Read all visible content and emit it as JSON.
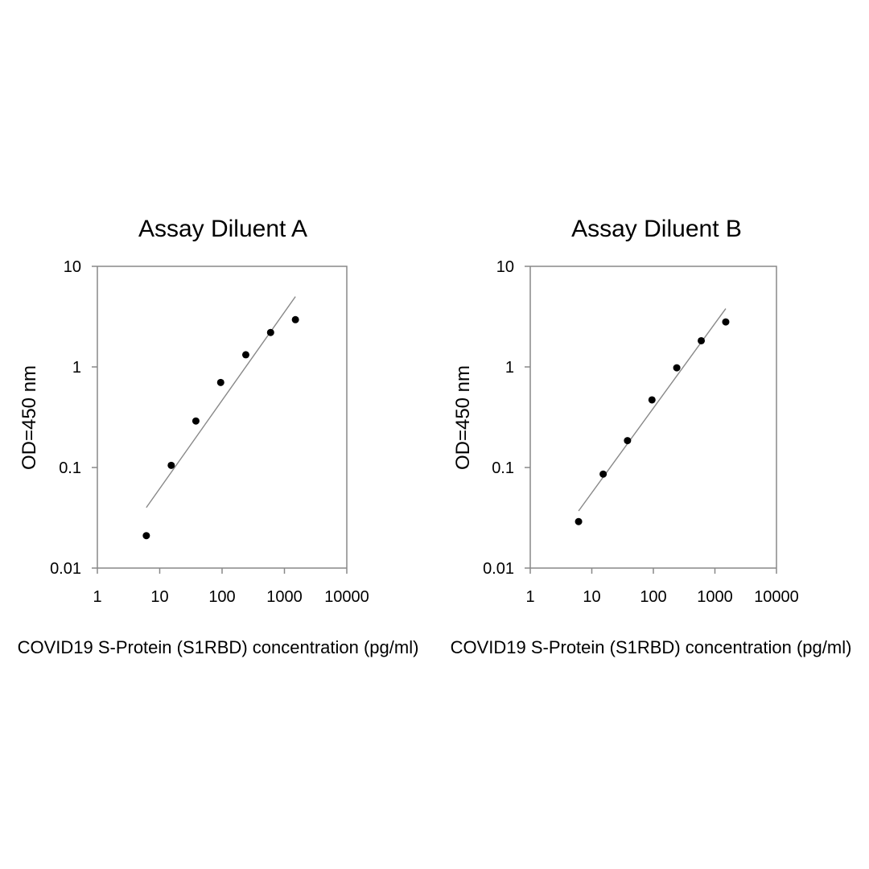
{
  "chart_data": [
    {
      "type": "scatter",
      "title": "Assay Diluent A",
      "xlabel": "COVID19 S-Protein (S1RBD) concentration (pg/ml)",
      "ylabel": "OD=450 nm",
      "xscale": "log",
      "yscale": "log",
      "xlim": [
        1,
        10000
      ],
      "ylim": [
        0.01,
        10
      ],
      "x_ticks": [
        "1",
        "10",
        "100",
        "1000",
        "10000"
      ],
      "y_ticks": [
        "10",
        "1",
        "0.1",
        "0.01"
      ],
      "grid": false,
      "points": [
        {
          "x": 6.1,
          "y": 0.021
        },
        {
          "x": 15.3,
          "y": 0.105
        },
        {
          "x": 38,
          "y": 0.29
        },
        {
          "x": 95,
          "y": 0.7
        },
        {
          "x": 240,
          "y": 1.32
        },
        {
          "x": 600,
          "y": 2.2
        },
        {
          "x": 1500,
          "y": 2.95
        }
      ],
      "trendline": [
        {
          "x": 6.1,
          "y": 0.04
        },
        {
          "x": 1500,
          "y": 5.0
        }
      ]
    },
    {
      "type": "scatter",
      "title": "Assay Diluent B",
      "xlabel": "COVID19 S-Protein (S1RBD) concentration (pg/ml)",
      "ylabel": "OD=450 nm",
      "xscale": "log",
      "yscale": "log",
      "xlim": [
        1,
        10000
      ],
      "ylim": [
        0.01,
        10
      ],
      "x_ticks": [
        "1",
        "10",
        "100",
        "1000",
        "10000"
      ],
      "y_ticks": [
        "10",
        "1",
        "0.1",
        "0.01"
      ],
      "grid": false,
      "points": [
        {
          "x": 6.1,
          "y": 0.029
        },
        {
          "x": 15.3,
          "y": 0.086
        },
        {
          "x": 38,
          "y": 0.185
        },
        {
          "x": 95,
          "y": 0.47
        },
        {
          "x": 240,
          "y": 0.98
        },
        {
          "x": 600,
          "y": 1.82
        },
        {
          "x": 1500,
          "y": 2.8
        }
      ],
      "trendline": [
        {
          "x": 6.1,
          "y": 0.037
        },
        {
          "x": 1500,
          "y": 3.8
        }
      ]
    }
  ]
}
